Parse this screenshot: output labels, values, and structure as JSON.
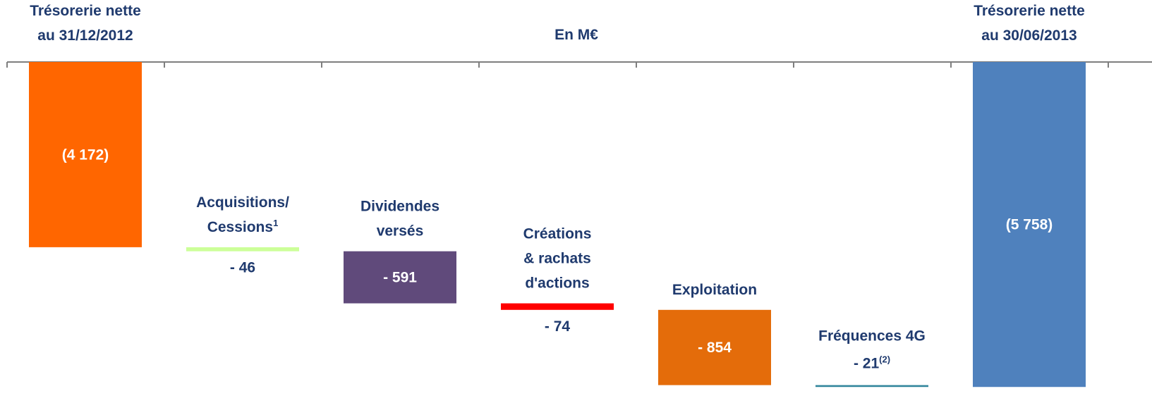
{
  "chart_data": {
    "type": "waterfall",
    "subtitle": "En M€",
    "categories": [
      [
        "Trésorerie nette",
        "au 31/12/2012"
      ],
      [
        "Acquisitions/",
        "Cessions"
      ],
      [
        "Dividendes",
        "versés"
      ],
      [
        "Créations",
        "& rachats",
        "d'actions"
      ],
      [
        "Exploitation"
      ],
      [
        "Fréquences 4G"
      ],
      [
        "Trésorerie nette",
        "au 30/06/2013"
      ]
    ],
    "category_notes": [
      null,
      "1",
      null,
      null,
      null,
      null,
      null
    ],
    "measures": [
      "absolute",
      "relative",
      "relative",
      "relative",
      "relative",
      "relative",
      "total"
    ],
    "values": [
      -4172,
      -46,
      -591,
      -74,
      -854,
      -21,
      -5758
    ],
    "value_labels": [
      "(4 172)",
      "- 46",
      "- 591",
      "- 74",
      "- 854",
      "- 21",
      "(5 758)"
    ],
    "value_notes": [
      null,
      null,
      null,
      null,
      null,
      "(2)",
      null
    ],
    "colors": [
      "#ff6600",
      "#ccff99",
      "#604a7b",
      "#ff0000",
      "#e46c0a",
      "#31859c",
      "#4f81bd"
    ],
    "ylim": [
      -5940,
      -2070
    ]
  }
}
